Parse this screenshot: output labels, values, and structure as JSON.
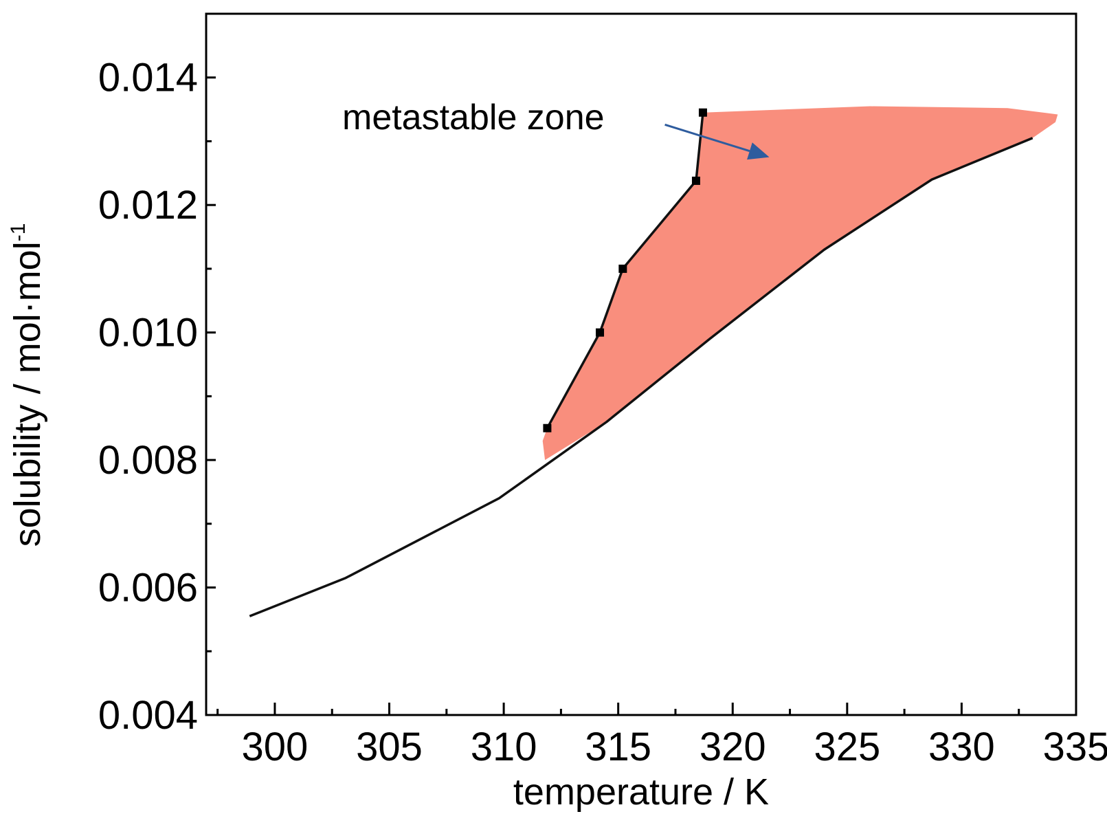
{
  "chart_data": {
    "type": "line",
    "title": "",
    "xlabel": "temperature / K",
    "ylabel_main": "solubility / mol·mol",
    "ylabel_sup": "-1",
    "xlim": [
      297,
      335
    ],
    "ylim": [
      0.004,
      0.015
    ],
    "x_ticks": [
      300,
      305,
      310,
      315,
      320,
      325,
      330,
      335
    ],
    "x_tick_labels": [
      "300",
      "305",
      "310",
      "315",
      "320",
      "325",
      "330",
      "335"
    ],
    "y_ticks": [
      0.004,
      0.006,
      0.008,
      0.01,
      0.012,
      0.014
    ],
    "y_tick_labels": [
      "0.004",
      "0.006",
      "0.008",
      "0.010",
      "0.012",
      "0.014"
    ],
    "grid": false,
    "series": [
      {
        "role": "solubility-curve",
        "color": "#111111",
        "markers": false,
        "x": [
          298.9,
          303.1,
          309.8,
          314.5,
          319.0,
          324.0,
          328.7,
          333.1
        ],
        "y": [
          0.00555,
          0.00615,
          0.0074,
          0.0086,
          0.0099,
          0.0113,
          0.0124,
          0.01305
        ]
      },
      {
        "role": "metastable-limit",
        "color": "#111111",
        "markers": true,
        "x": [
          311.9,
          314.2,
          315.2,
          318.4,
          318.7
        ],
        "y": [
          0.0085,
          0.01,
          0.011,
          0.01238,
          0.01345
        ]
      }
    ],
    "region": {
      "color": "#f98e7d",
      "x": [
        318.7,
        326.0,
        332.0,
        334.2,
        334.1,
        333.1,
        328.7,
        324.0,
        319.0,
        314.5,
        311.8,
        311.7,
        311.9,
        314.2,
        315.2,
        318.4
      ],
      "y": [
        0.01345,
        0.01355,
        0.01352,
        0.01342,
        0.0133,
        0.01305,
        0.0124,
        0.0113,
        0.0099,
        0.0086,
        0.008,
        0.0083,
        0.0085,
        0.01,
        0.011,
        0.01238
      ]
    },
    "annotation": {
      "text": "metastable zone",
      "arrow_color": "#2e5c9e",
      "arrow_from": [
        319.5,
        0.01326
      ],
      "arrow_to": [
        321.6,
        0.01275
      ]
    }
  }
}
